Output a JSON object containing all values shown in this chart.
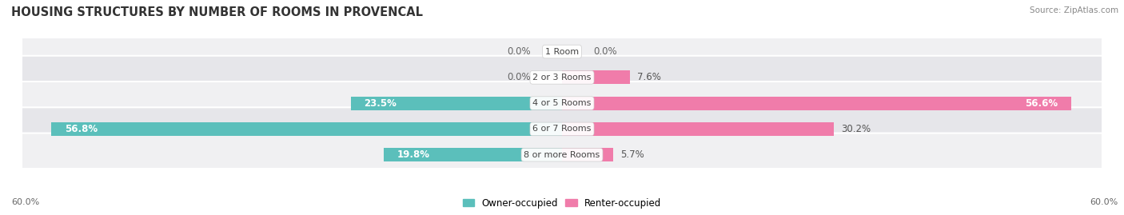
{
  "title": "HOUSING STRUCTURES BY NUMBER OF ROOMS IN PROVENCAL",
  "source": "Source: ZipAtlas.com",
  "categories": [
    "1 Room",
    "2 or 3 Rooms",
    "4 or 5 Rooms",
    "6 or 7 Rooms",
    "8 or more Rooms"
  ],
  "owner_values": [
    0.0,
    0.0,
    23.5,
    56.8,
    19.8
  ],
  "renter_values": [
    0.0,
    7.6,
    56.6,
    30.2,
    5.7
  ],
  "owner_color": "#5bbfbb",
  "renter_color": "#f07caa",
  "row_bg_color_odd": "#f0f0f2",
  "row_bg_color_even": "#e6e6ea",
  "max_value": 60.0,
  "axis_label_left": "60.0%",
  "axis_label_right": "60.0%",
  "title_fontsize": 10.5,
  "label_fontsize": 8.5,
  "cat_fontsize": 8.0,
  "bar_height": 0.52,
  "figsize": [
    14.06,
    2.69
  ],
  "dpi": 100,
  "bg_color": "#ffffff",
  "legend_owner": "Owner-occupied",
  "legend_renter": "Renter-occupied"
}
